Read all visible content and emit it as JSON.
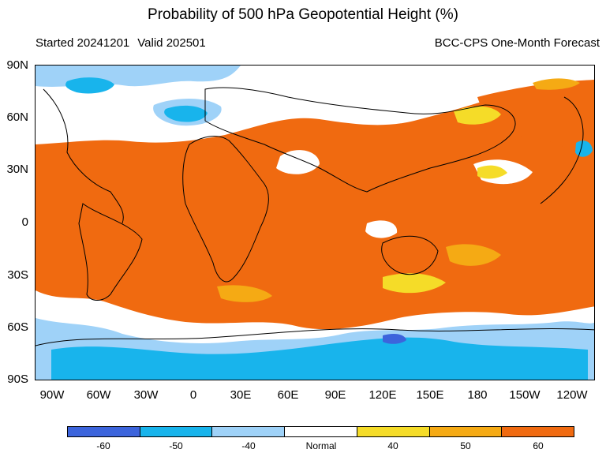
{
  "header": {
    "title": "Probability of 500 hPa Geopotential Height (%)",
    "started": "Started 20241201",
    "valid": "Valid 202501",
    "product": "BCC-CPS One-Month Forecast"
  },
  "map": {
    "lat_ticks": [
      "90N",
      "60N",
      "30N",
      "0",
      "30S",
      "60S",
      "90S"
    ],
    "lon_ticks": [
      "90W",
      "60W",
      "30W",
      "0",
      "30E",
      "60E",
      "90E",
      "120E",
      "150E",
      "180",
      "150W",
      "120W"
    ]
  },
  "legend": {
    "categories": [
      {
        "label": "-60",
        "color": "#3c64dc"
      },
      {
        "label": "-50",
        "color": "#18b4ec"
      },
      {
        "label": "-40",
        "color": "#9fd2f8"
      },
      {
        "label": "Normal",
        "color": "#ffffff"
      },
      {
        "label": "40",
        "color": "#f5dc28"
      },
      {
        "label": "50",
        "color": "#f5aa14"
      },
      {
        "label": "60",
        "color": "#f06a10"
      }
    ]
  }
}
